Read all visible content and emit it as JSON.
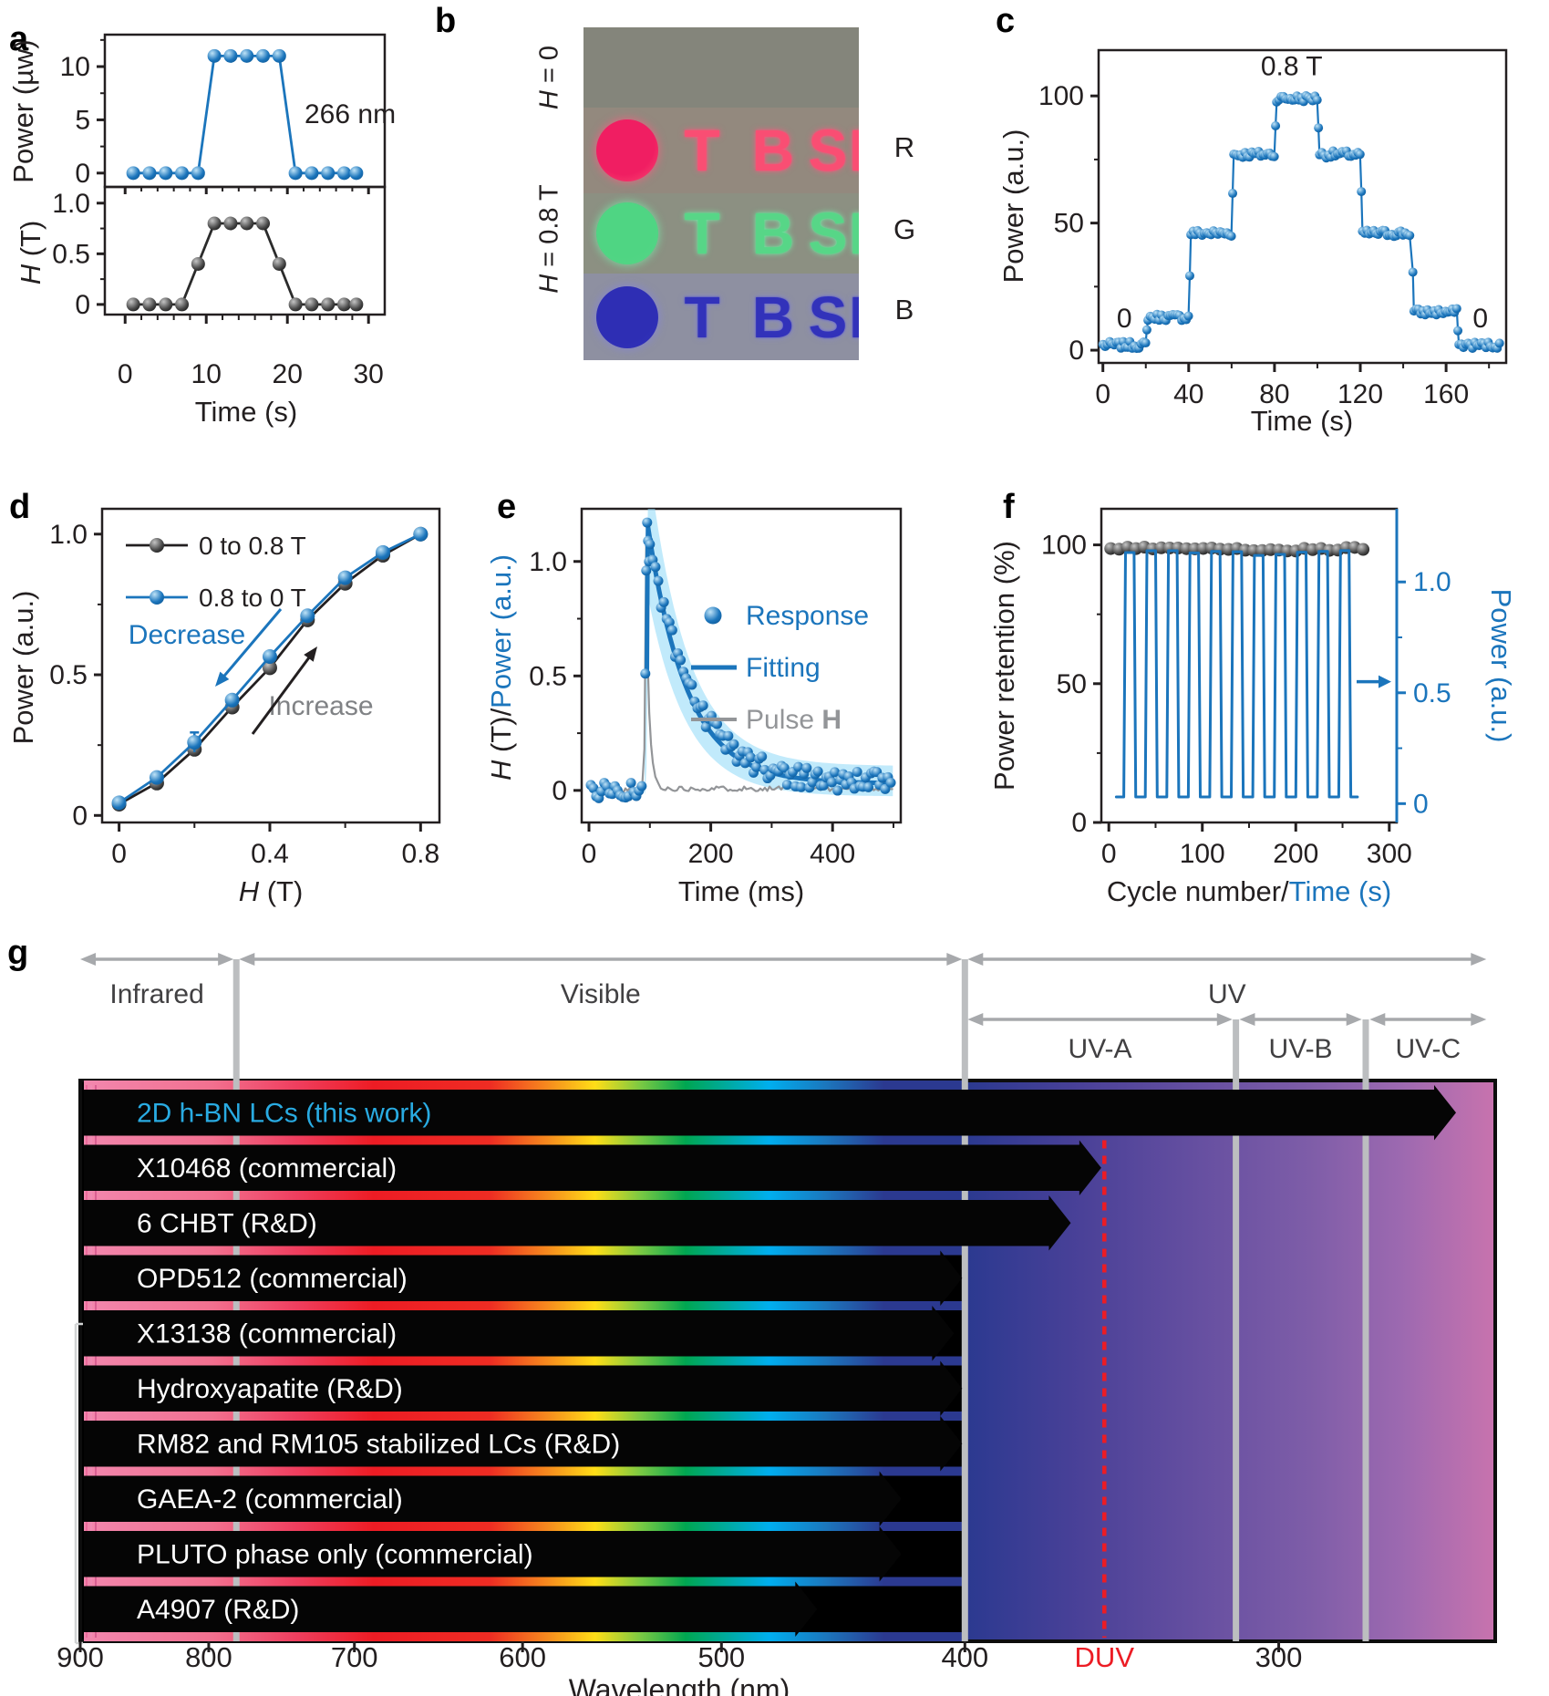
{
  "panel_letters": {
    "a": "a",
    "b": "b",
    "c": "c",
    "d": "d",
    "e": "e",
    "f": "f",
    "g": "g"
  },
  "colors": {
    "blue": "#1B75BC",
    "sky_blue": "#29ABE2",
    "band": "#8ED8F8",
    "black": "#231F20",
    "gray": "#939598",
    "arrow_gray": "#A7A9AC",
    "red": "#EC1C24",
    "increase_gray": "#808285"
  },
  "photo": {
    "left_labels": [
      "H = 0",
      "H = 0.8 T"
    ],
    "right_labels": [
      "R",
      "G",
      "B"
    ],
    "letters": [
      "T",
      "B",
      "S",
      "I"
    ],
    "blank_bg": "#84857B",
    "rows": [
      {
        "key": "R",
        "letter_color": "#F94E73",
        "circle_color": "#F01E62",
        "glow": "rgba(255,90,130,0.85)",
        "bg": "#93897E"
      },
      {
        "key": "G",
        "letter_color": "#57D687",
        "circle_color": "#4FD583",
        "glow": "rgba(120,240,170,0.85)",
        "bg": "#8C9082"
      },
      {
        "key": "B",
        "letter_color": "#3232BA",
        "circle_color": "#2E2EB4",
        "glow": "rgba(130,130,225,0.85)",
        "bg": "#8E90A1"
      }
    ]
  },
  "chart_data": [
    {
      "id": "a",
      "type": "line",
      "x": [
        1,
        3,
        5,
        7,
        9,
        11,
        13,
        15,
        17,
        19,
        21,
        23,
        25,
        27,
        28.5
      ],
      "top": {
        "ylabel": "Power (µw)",
        "yticks": [
          0,
          5,
          10
        ],
        "yminor": [
          2.5,
          7.5,
          12.5
        ],
        "values": [
          0,
          0,
          0,
          0,
          0,
          11,
          11,
          11,
          11,
          11,
          0,
          0,
          0,
          0,
          0
        ],
        "annotation": "266 nm"
      },
      "bottom": {
        "ylabel_parts": [
          {
            "t": "H",
            "style": "italic"
          },
          {
            "t": " (T)"
          }
        ],
        "yticks": [
          0,
          0.5,
          1.0
        ],
        "yminor": [
          0.25,
          0.75
        ],
        "values": [
          0,
          0,
          0,
          0,
          0.4,
          0.8,
          0.8,
          0.8,
          0.8,
          0.4,
          0,
          0,
          0,
          0,
          0
        ]
      },
      "xlabel": "Time (s)",
      "xticks": [
        0,
        10,
        20,
        30
      ]
    },
    {
      "id": "c",
      "type": "scatter-step",
      "title": "",
      "ylabel": "Power (a.u.)",
      "xlabel": "Time (s)",
      "yticks": [
        0,
        50,
        100
      ],
      "yminor": [
        25,
        75
      ],
      "xticks": [
        0,
        40,
        80,
        120,
        160
      ],
      "xminor": [
        20,
        60,
        100,
        140,
        180
      ],
      "xlim": [
        0,
        185
      ],
      "ylim": [
        0,
        115
      ],
      "steps": [
        [
          0,
          20,
          2
        ],
        [
          21,
          40,
          13
        ],
        [
          41,
          60,
          46
        ],
        [
          61,
          80,
          77
        ],
        [
          81,
          100,
          99
        ],
        [
          101,
          120,
          77
        ],
        [
          121,
          144,
          46
        ],
        [
          145,
          165,
          15
        ],
        [
          166,
          185,
          2
        ]
      ],
      "annotations": [
        {
          "text": "0.8 T",
          "t": 88,
          "v": 106
        },
        {
          "text": "0",
          "t": 10,
          "v": 9
        },
        {
          "text": "0",
          "t": 176,
          "v": 9
        }
      ]
    },
    {
      "id": "d",
      "type": "line",
      "ylabel": "Power (a.u.)",
      "xlabel_parts": [
        {
          "t": "H",
          "style": "italic"
        },
        {
          "t": " (T)"
        }
      ],
      "xticks": [
        0,
        0.4,
        0.8
      ],
      "xminor": [
        0.2,
        0.6
      ],
      "yticks": [
        0,
        0.5,
        1.0
      ],
      "yminor": [
        0.25,
        0.75
      ],
      "x": [
        0,
        0.1,
        0.2,
        0.3,
        0.4,
        0.5,
        0.6,
        0.7,
        0.8
      ],
      "series": [
        {
          "name": "0 to 0.8 T",
          "color": "#231F20",
          "values": [
            0.04,
            0.115,
            0.235,
            0.385,
            0.525,
            0.695,
            0.825,
            0.925,
            1.0
          ]
        },
        {
          "name": "0.8 to 0 T",
          "color": "#1B75BC",
          "values": [
            0.045,
            0.135,
            0.26,
            0.41,
            0.565,
            0.71,
            0.845,
            0.935,
            1.0
          ]
        }
      ],
      "errors": [
        [
          1,
          2,
          0.035
        ],
        [
          0,
          4,
          0.025
        ]
      ],
      "annotations": {
        "decrease": "Decrease",
        "increase": "Increase"
      }
    },
    {
      "id": "e",
      "type": "scatter-fit",
      "ylabel_parts": [
        {
          "t": "H",
          "style": "italic",
          "fill": "#231F20"
        },
        {
          "t": " (T)/",
          "fill": "#231F20"
        },
        {
          "t": "Power (a.u.)",
          "fill": "#1B75BC"
        }
      ],
      "xlabel": "Time (ms)",
      "xticks": [
        0,
        200,
        400
      ],
      "xminor": [
        100,
        300,
        500
      ],
      "yticks": [
        0,
        0.5,
        1.0
      ],
      "yminor": [
        0.25,
        0.75
      ],
      "xlim": [
        0,
        500
      ],
      "legend": [
        {
          "name": "Response",
          "type": "marker"
        },
        {
          "name": "Fitting",
          "type": "line"
        },
        {
          "name": "Pulse H",
          "type": "line-gray"
        }
      ],
      "response": {
        "baseline_end": 88,
        "spike": [
          [
            92.5,
            0.51
          ],
          [
            94,
            0.96
          ],
          [
            95.5,
            1.17
          ],
          [
            97,
            1.09
          ],
          [
            98.5,
            1.0
          ]
        ],
        "decay_amp": 1.1,
        "decay_tau": 70,
        "decay_offset": 0.03,
        "noise": 0.095
      },
      "fitting": {
        "start": [
          [
            95,
            0.5
          ],
          [
            96,
            0.95
          ],
          [
            97,
            1.15
          ]
        ],
        "amp": 1.12,
        "tau": 64,
        "offset": 0.03
      },
      "pulse": {
        "spike": [
          [
            91,
            0.18
          ],
          [
            92.5,
            0.62
          ],
          [
            94,
            1.08
          ],
          [
            95.5,
            0.82
          ],
          [
            97,
            0.52
          ],
          [
            99,
            0.34
          ],
          [
            102,
            0.2
          ],
          [
            105,
            0.12
          ],
          [
            109,
            0.06
          ],
          [
            114,
            0.03
          ]
        ]
      }
    },
    {
      "id": "f",
      "type": "cycles",
      "ylabel_left": "Power retention (%)",
      "ylabel_right": "Power (a.u.)",
      "xlabel_parts": [
        {
          "t": "Cycle number/",
          "fill": "#231F20"
        },
        {
          "t": "Time (s)",
          "fill": "#1B75BC"
        }
      ],
      "xticks": [
        0,
        100,
        200,
        300
      ],
      "xminor": [
        50,
        150,
        250
      ],
      "yticks_left": [
        0,
        50,
        100
      ],
      "yminor_left": [
        25,
        75
      ],
      "yticks_right": [
        0,
        0.5,
        1.0
      ],
      "yminor_right": [
        0.25,
        0.75
      ],
      "retention": {
        "t_start": 2,
        "t_end": 272,
        "step": 9,
        "level": 98.6,
        "noise": 1.0
      },
      "wave": {
        "first_rise": 16,
        "period": 23,
        "high_duration": 11,
        "cycles": 11,
        "low": 0.03,
        "high": 1.13,
        "t_start": 8,
        "t_end": 266
      }
    },
    {
      "id": "g",
      "type": "bar-spectrum",
      "xlabel": "Wavelength (nm)",
      "xticks": [
        900,
        800,
        700,
        600,
        500,
        400,
        300
      ],
      "axis": {
        "left_nm": 900,
        "right_nm": 246
      },
      "regions": [
        {
          "name": "Infrared",
          "from": 900,
          "to": 782,
          "heads": "both"
        },
        {
          "name": "Visible",
          "from": 778,
          "to": 401,
          "heads": "both"
        },
        {
          "name": "UV",
          "from": 399,
          "to": 248,
          "heads": "both"
        }
      ],
      "uv_sub": [
        {
          "name": "UV-A",
          "from": 399,
          "to": 313,
          "heads": "both"
        },
        {
          "name": "UV-B",
          "from": 311,
          "to": 278,
          "heads": "both"
        },
        {
          "name": "UV-C",
          "from": 276,
          "to": 248,
          "heads": "both"
        }
      ],
      "boundaries_nm": [
        780,
        400,
        312,
        277
      ],
      "duv": {
        "label": "DUV",
        "nm": 352
      },
      "bars": [
        {
          "name": "2D h-BN LCs (this work)",
          "end_nm": 255,
          "label_color": "#29ABE2"
        },
        {
          "name": "X10468 (commercial)",
          "end_nm": 353
        },
        {
          "name": "6 CHBT (R&D)",
          "end_nm": 363
        },
        {
          "name": "OPD512 (commercial)",
          "end_nm": 401
        },
        {
          "name": "X13138 (commercial)",
          "end_nm": 404
        },
        {
          "name": "Hydroxyapatite (R&D)",
          "end_nm": 401
        },
        {
          "name": "RM82 and RM105 stabilized LCs (R&D)",
          "end_nm": 401
        },
        {
          "name": "GAEA-2 (commercial)",
          "end_nm": 424
        },
        {
          "name": "PLUTO phase only (commercial)",
          "end_nm": 424
        },
        {
          "name": "A4907 (R&D)",
          "end_nm": 458
        }
      ]
    }
  ]
}
